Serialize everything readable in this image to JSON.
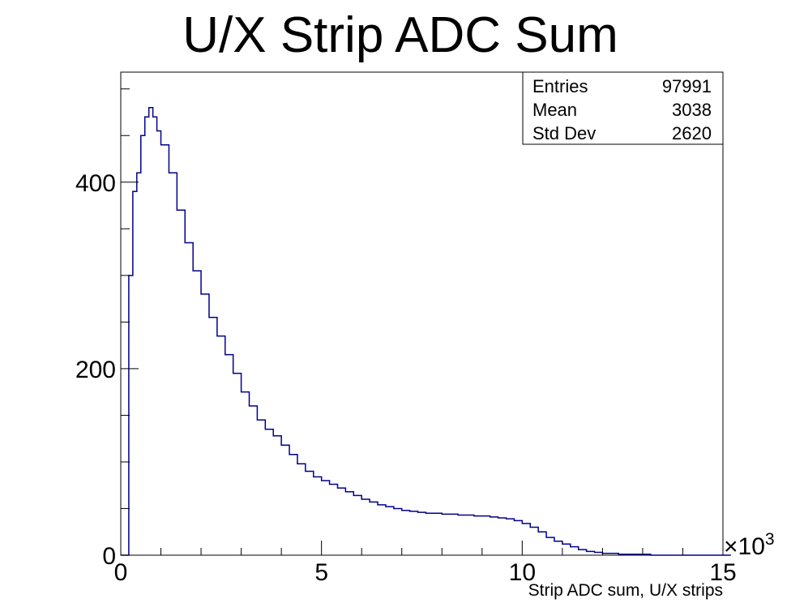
{
  "chart_data": {
    "type": "histogram",
    "title": "U/X Strip ADC Sum",
    "xlabel": "Strip ADC sum, U/X strips",
    "ylabel": "",
    "x_multiplier_base": "×10",
    "x_multiplier_exp": "3",
    "xlim": [
      0,
      15
    ],
    "ylim": [
      0,
      518
    ],
    "xticks": [
      {
        "value": 0,
        "label": "0"
      },
      {
        "value": 5,
        "label": "5"
      },
      {
        "value": 10,
        "label": "10"
      },
      {
        "value": 15,
        "label": "15"
      }
    ],
    "yticks": [
      {
        "value": 0,
        "label": "0"
      },
      {
        "value": 200,
        "label": "200"
      },
      {
        "value": 400,
        "label": "400"
      }
    ],
    "line_color": "#00008b",
    "grid": false,
    "legend": "none",
    "stats_box": {
      "position": "top-right",
      "rows": [
        {
          "label": "Entries",
          "value": "97991"
        },
        {
          "label": "Mean",
          "value": "3038"
        },
        {
          "label": "Std Dev",
          "value": "2620"
        }
      ]
    },
    "x": [
      0.0,
      0.1,
      0.2,
      0.3,
      0.4,
      0.5,
      0.6,
      0.7,
      0.8,
      0.9,
      1.0,
      1.2,
      1.4,
      1.6,
      1.8,
      2.0,
      2.2,
      2.4,
      2.6,
      2.8,
      3.0,
      3.2,
      3.4,
      3.6,
      3.8,
      4.0,
      4.2,
      4.4,
      4.6,
      4.8,
      5.0,
      5.2,
      5.4,
      5.6,
      5.8,
      6.0,
      6.2,
      6.4,
      6.6,
      6.8,
      7.0,
      7.2,
      7.4,
      7.6,
      7.8,
      8.0,
      8.2,
      8.4,
      8.6,
      8.8,
      9.0,
      9.2,
      9.4,
      9.6,
      9.8,
      10.0,
      10.2,
      10.4,
      10.6,
      10.8,
      11.0,
      11.2,
      11.4,
      11.6,
      11.8,
      12.0,
      12.2,
      12.4,
      12.6,
      12.8,
      13.0,
      13.2,
      13.4,
      13.6,
      13.8,
      14.0,
      14.2,
      14.4,
      14.6,
      14.8,
      15.0
    ],
    "values": [
      0,
      0,
      300,
      390,
      410,
      450,
      470,
      480,
      470,
      455,
      440,
      410,
      370,
      335,
      305,
      280,
      255,
      235,
      215,
      195,
      175,
      160,
      145,
      135,
      128,
      118,
      108,
      98,
      90,
      84,
      80,
      76,
      72,
      68,
      64,
      60,
      57,
      54,
      52,
      50,
      48,
      47,
      46,
      45,
      45,
      44,
      44,
      43,
      43,
      42,
      42,
      41,
      40,
      39,
      37,
      34,
      30,
      25,
      19,
      15,
      12,
      9,
      6,
      4,
      3,
      2,
      2,
      1,
      1,
      1,
      1,
      0,
      0,
      0,
      0,
      0,
      0,
      0,
      0,
      0,
      0
    ]
  }
}
